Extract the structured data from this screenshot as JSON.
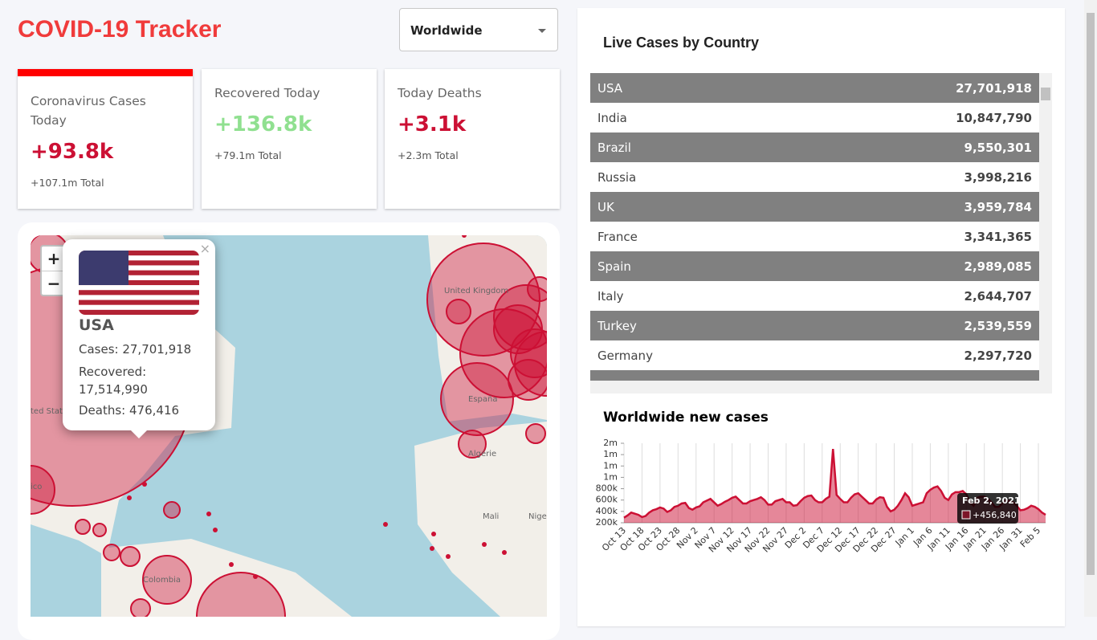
{
  "header": {
    "title": "COVID-19 Tracker",
    "select": "Worldwide"
  },
  "stats": [
    {
      "title": "Coronavirus Cases Today",
      "value": "+93.8k",
      "total": "+107.1m Total"
    },
    {
      "title": "Recovered Today",
      "value": "+136.8k",
      "total": "+79.1m Total"
    },
    {
      "title": "Today Deaths",
      "value": "+3.1k",
      "total": "+2.3m Total"
    }
  ],
  "map": {
    "zoom_in": "+",
    "zoom_out": "−",
    "close": "×",
    "labels": [
      "United Kingdom",
      "España",
      "Algérie",
      "Mali",
      "Colombia",
      "ted State",
      "ico",
      "Nige"
    ],
    "popup": {
      "country": "USA",
      "cases": "Cases: 27,701,918",
      "recovered": "Recovered: 17,514,990",
      "deaths": "Deaths: 476,416"
    }
  },
  "table": {
    "title": "Live Cases by Country",
    "rows": [
      [
        "USA",
        "27,701,918"
      ],
      [
        "India",
        "10,847,790"
      ],
      [
        "Brazil",
        "9,550,301"
      ],
      [
        "Russia",
        "3,998,216"
      ],
      [
        "UK",
        "3,959,784"
      ],
      [
        "France",
        "3,341,365"
      ],
      [
        "Spain",
        "2,989,085"
      ],
      [
        "Italy",
        "2,644,707"
      ],
      [
        "Turkey",
        "2,539,559"
      ],
      [
        "Germany",
        "2,297,720"
      ]
    ]
  },
  "chart_data": {
    "type": "line",
    "title": "Worldwide new cases",
    "categories": [
      "Oct 13",
      null,
      null,
      null,
      null,
      "Oct 18",
      null,
      null,
      null,
      null,
      "Oct 23",
      null,
      null,
      null,
      null,
      "Oct 28",
      null,
      null,
      null,
      null,
      "Nov 2",
      null,
      null,
      null,
      null,
      "Nov 7",
      null,
      null,
      null,
      null,
      "Nov 12",
      null,
      null,
      null,
      null,
      "Nov 17",
      null,
      null,
      null,
      null,
      "Nov 22",
      null,
      null,
      null,
      null,
      "Nov 27",
      null,
      null,
      null,
      null,
      "Dec 2",
      null,
      null,
      null,
      null,
      "Dec 7",
      null,
      null,
      null,
      null,
      "Dec 12",
      null,
      null,
      null,
      null,
      "Dec 17",
      null,
      null,
      null,
      null,
      "Dec 22",
      null,
      null,
      null,
      null,
      "Dec 27",
      null,
      null,
      null,
      null,
      "Jan 1",
      null,
      null,
      null,
      null,
      "Jan 6",
      null,
      null,
      null,
      null,
      "Jan 11",
      null,
      null,
      null,
      null,
      "Jan 16",
      null,
      null,
      null,
      null,
      "Jan 21",
      null,
      null,
      null,
      null,
      "Jan 26",
      null,
      null,
      null,
      null,
      "Jan 31",
      null,
      null,
      null,
      null,
      "Feb 5",
      null,
      null
    ],
    "series": [
      {
        "color": "#cc1034",
        "fill": "rgba(204,16,52,0.5)",
        "values": [
          290000,
          330000,
          380000,
          360000,
          340000,
          300000,
          320000,
          380000,
          420000,
          440000,
          470000,
          450000,
          390000,
          420000,
          480000,
          500000,
          540000,
          550000,
          460000,
          430000,
          470000,
          490000,
          560000,
          590000,
          620000,
          560000,
          500000,
          530000,
          570000,
          600000,
          640000,
          660000,
          600000,
          540000,
          540000,
          580000,
          600000,
          620000,
          650000,
          600000,
          520000,
          520000,
          580000,
          600000,
          620000,
          560000,
          560000,
          500000,
          510000,
          580000,
          640000,
          670000,
          680000,
          600000,
          560000,
          560000,
          620000,
          660000,
          1500000,
          690000,
          620000,
          560000,
          560000,
          640000,
          700000,
          720000,
          660000,
          600000,
          540000,
          540000,
          610000,
          650000,
          640000,
          480000,
          400000,
          430000,
          500000,
          600000,
          720000,
          650000,
          500000,
          520000,
          540000,
          560000,
          720000,
          780000,
          820000,
          840000,
          760000,
          640000,
          600000,
          700000,
          740000,
          740000,
          760000,
          700000,
          560000,
          500000,
          640000,
          660000,
          660000,
          620000,
          560000,
          480000,
          480000,
          540000,
          600000,
          580000,
          560000,
          500000,
          420000,
          430000,
          456840,
          500000,
          480000,
          440000,
          380000,
          340000
        ]
      }
    ],
    "ylim": [
      200000,
      1600000
    ],
    "yticks": [
      {
        "value": 200000,
        "label": "200k"
      },
      {
        "value": 400000,
        "label": "400k"
      },
      {
        "value": 600000,
        "label": "600k"
      },
      {
        "value": 800000,
        "label": "800k"
      },
      {
        "value": 1000000,
        "label": "1m"
      },
      {
        "value": 1200000,
        "label": "1m"
      },
      {
        "value": 1400000,
        "label": "1m"
      },
      {
        "value": 1600000,
        "label": "2m"
      }
    ],
    "grid": true,
    "tooltip": {
      "title": "Feb 2, 2021",
      "label": "+456,840"
    }
  }
}
